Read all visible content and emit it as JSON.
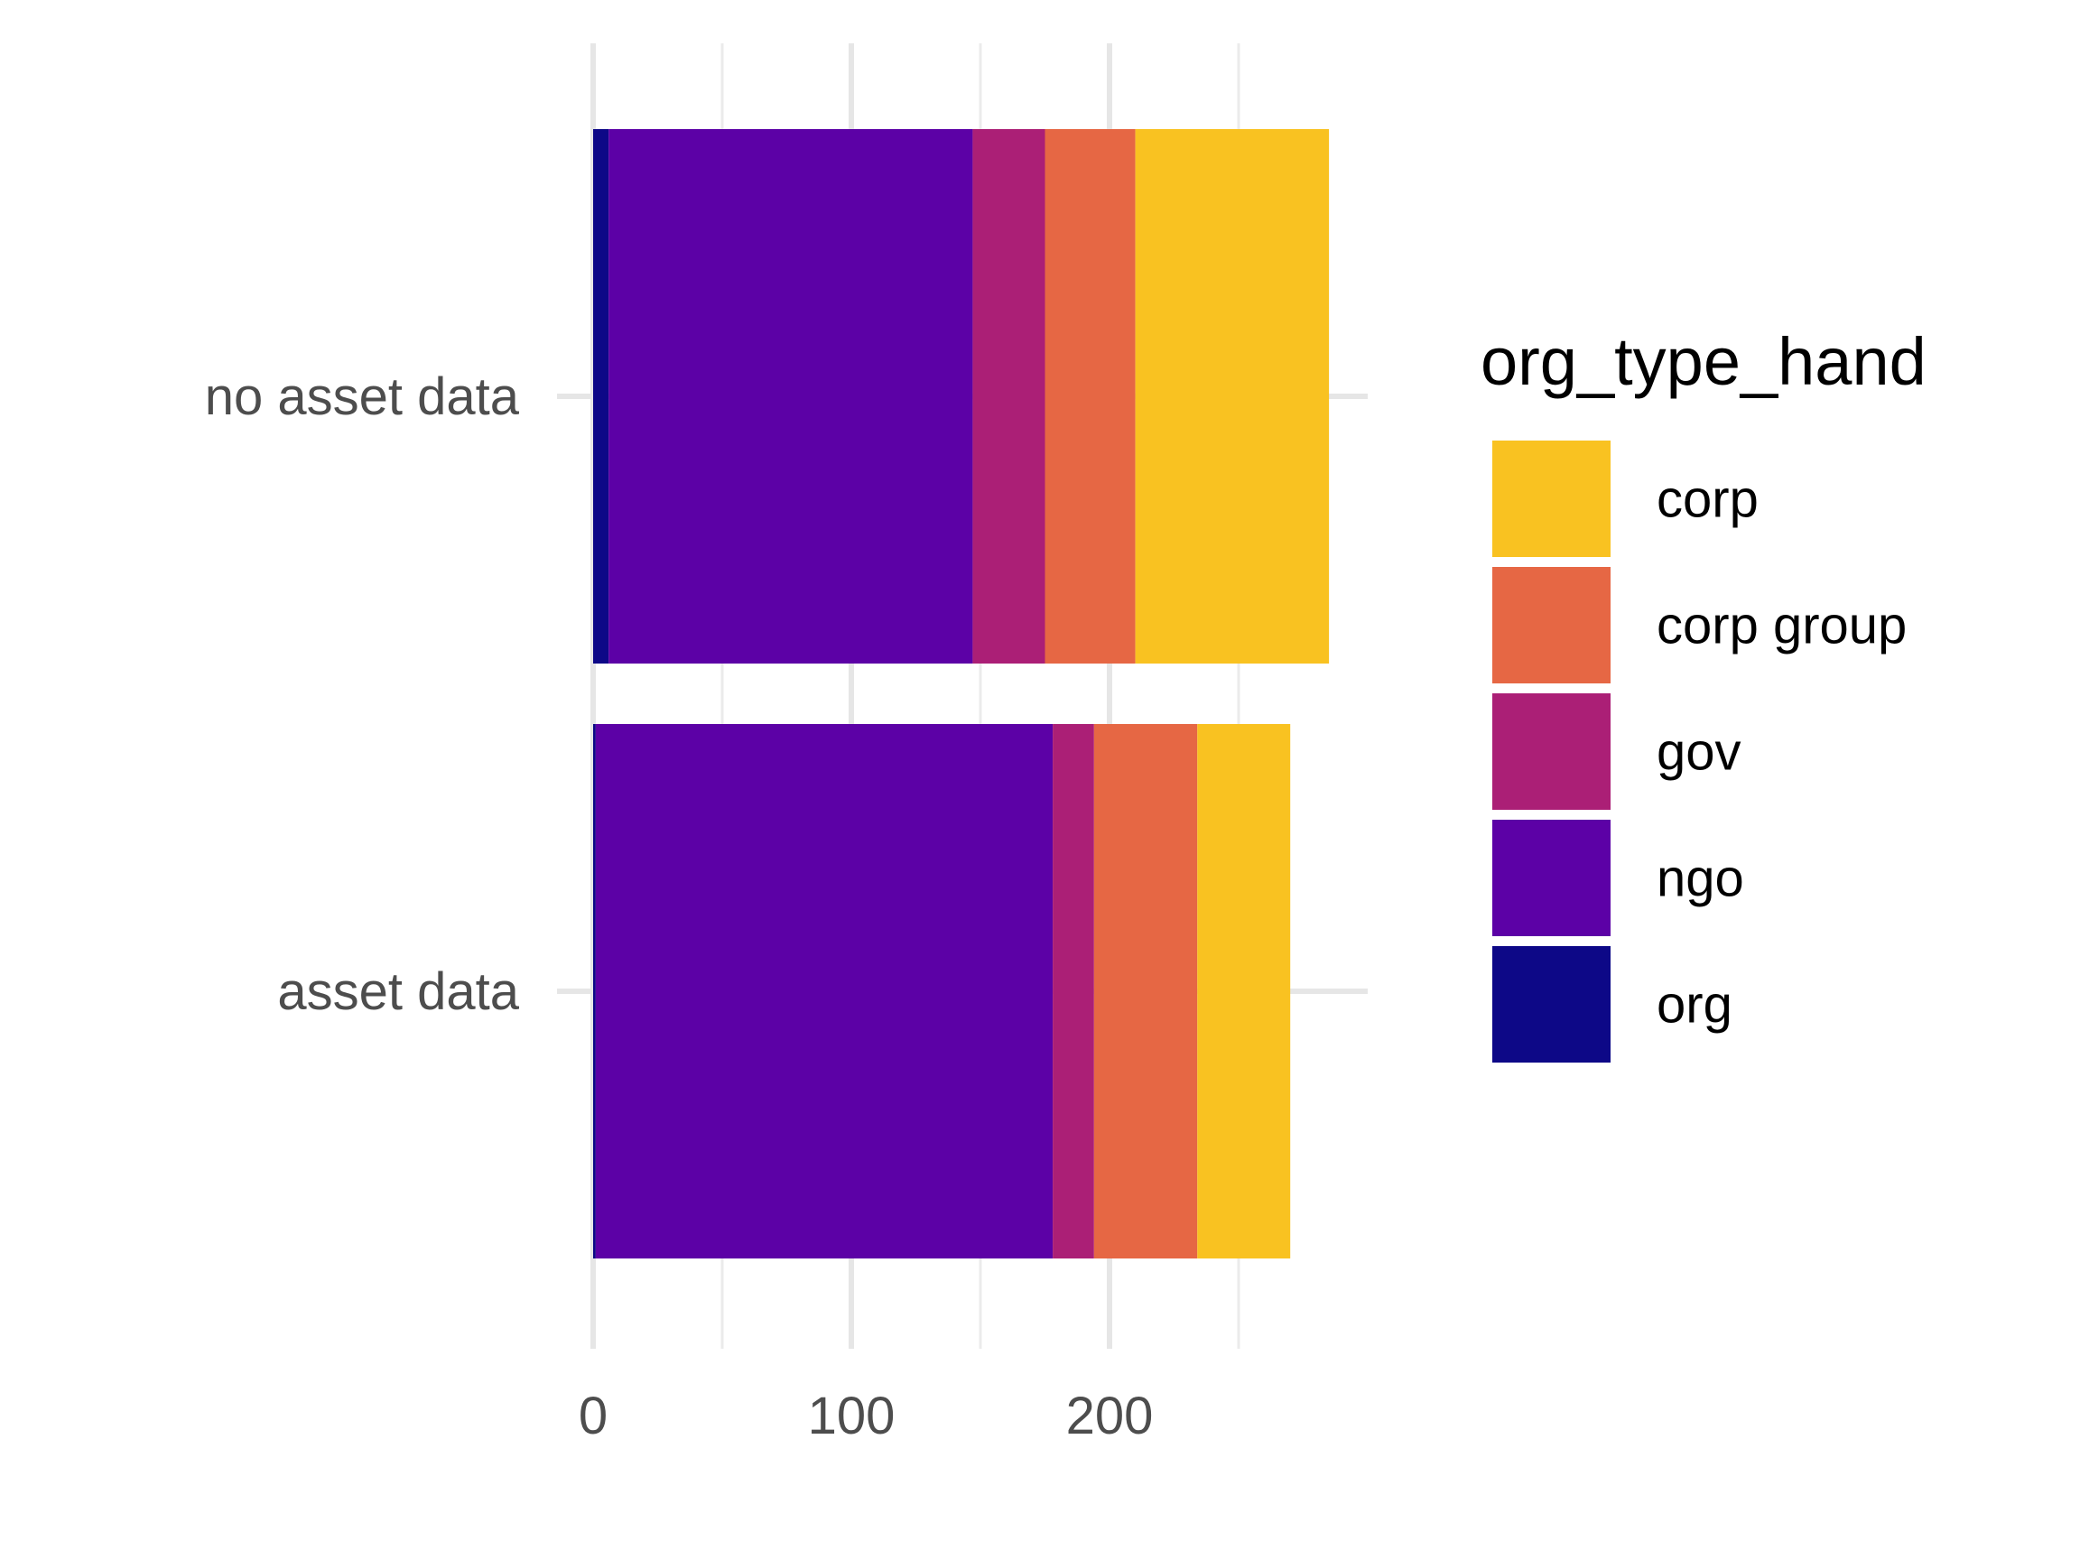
{
  "chart_data": {
    "type": "bar",
    "orientation": "horizontal",
    "stacked": true,
    "categories": [
      "asset data",
      "no asset data"
    ],
    "series": [
      {
        "name": "org",
        "color": "#0D0887",
        "values": [
          1,
          6
        ]
      },
      {
        "name": "ngo",
        "color": "#5C01A6",
        "values": [
          177,
          141
        ]
      },
      {
        "name": "gov",
        "color": "#AB1F76",
        "values": [
          16,
          28
        ]
      },
      {
        "name": "corp group",
        "color": "#E66744",
        "values": [
          40,
          35
        ]
      },
      {
        "name": "corp",
        "color": "#F9C221",
        "values": [
          36,
          75
        ]
      }
    ],
    "x_ticks": [
      0,
      100,
      200
    ],
    "x_tick_labels": [
      "0",
      "100",
      "200"
    ],
    "xlim": [
      0,
      300
    ],
    "legend": {
      "title": "org_type_hand",
      "placement": "right",
      "entries": [
        "corp",
        "corp group",
        "gov",
        "ngo",
        "org"
      ]
    },
    "grid": true
  }
}
